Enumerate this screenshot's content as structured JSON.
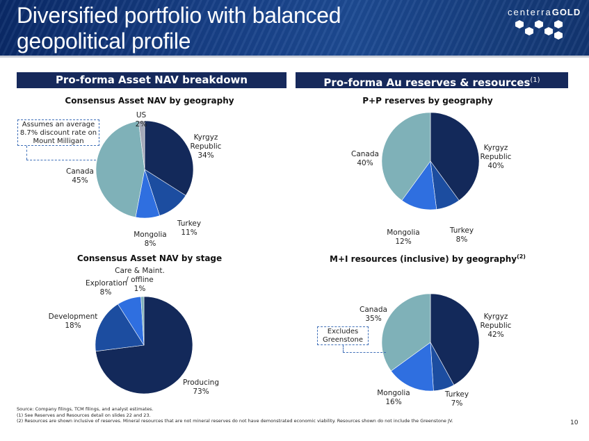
{
  "header": {
    "title": "Diversified portfolio with balanced geopolitical profile",
    "logo_text_light": "centerra",
    "logo_text_bold": "GOLD"
  },
  "sections": {
    "left_heading": "Pro-forma Asset NAV breakdown",
    "right_heading": "Pro-forma Au reserves & resources",
    "right_heading_note": "(1)"
  },
  "callouts": {
    "discount_rate": "Assumes an average 8.7% discount rate on Mount Milligan",
    "greenstone": "Excludes Greenstone"
  },
  "colors": {
    "header_bg": "#173f86",
    "section_bg": "#16295b",
    "navy": "#13295a",
    "mid_blue": "#1c4da0",
    "bright_blue": "#2f6fe0",
    "teal": "#7fb1b8",
    "grey": "#a4a9b8",
    "callout_border": "#3f6fb8"
  },
  "chart_data": [
    {
      "type": "pie",
      "title": "Consensus Asset NAV by geography",
      "slices": [
        {
          "label": "Kyrgyz Republic",
          "display": "Kyrgyz\nRepublic\n34%",
          "value": 34,
          "color": "#13295a"
        },
        {
          "label": "Turkey",
          "display": "Turkey\n11%",
          "value": 11,
          "color": "#1c4da0"
        },
        {
          "label": "Mongolia",
          "display": "Mongolia\n8%",
          "value": 8,
          "color": "#2f6fe0"
        },
        {
          "label": "Canada",
          "display": "Canada\n45%",
          "value": 45,
          "color": "#7fb1b8"
        },
        {
          "label": "US",
          "display": "US\n2%",
          "value": 2,
          "color": "#a4a9b8"
        }
      ]
    },
    {
      "type": "pie",
      "title": "P+P reserves by geography",
      "slices": [
        {
          "label": "Kyrgyz Republic",
          "display": "Kyrgyz\nRepublic\n40%",
          "value": 40,
          "color": "#13295a"
        },
        {
          "label": "Turkey",
          "display": "Turkey\n8%",
          "value": 8,
          "color": "#1c4da0"
        },
        {
          "label": "Mongolia",
          "display": "Mongolia\n12%",
          "value": 12,
          "color": "#2f6fe0"
        },
        {
          "label": "Canada",
          "display": "Canada\n40%",
          "value": 40,
          "color": "#7fb1b8"
        }
      ]
    },
    {
      "type": "pie",
      "title": "Consensus Asset NAV by stage",
      "slices": [
        {
          "label": "Producing",
          "display": "Producing\n73%",
          "value": 73,
          "color": "#13295a"
        },
        {
          "label": "Development",
          "display": "Development\n18%",
          "value": 18,
          "color": "#1c4da0"
        },
        {
          "label": "Exploration",
          "display": "Exploration\n8%",
          "value": 8,
          "color": "#2f6fe0"
        },
        {
          "label": "Care & Maint. / offline",
          "display": "Care & Maint.\n/ offline\n1%",
          "value": 1,
          "color": "#7fb1b8"
        }
      ]
    },
    {
      "type": "pie",
      "title": "M+I resources (inclusive) by geography",
      "title_note": "(2)",
      "slices": [
        {
          "label": "Kyrgyz Republic",
          "display": "Kyrgyz\nRepublic\n42%",
          "value": 42,
          "color": "#13295a"
        },
        {
          "label": "Turkey",
          "display": "Turkey\n7%",
          "value": 7,
          "color": "#1c4da0"
        },
        {
          "label": "Mongolia",
          "display": "Mongolia\n16%",
          "value": 16,
          "color": "#2f6fe0"
        },
        {
          "label": "Canada",
          "display": "Canada\n35%",
          "value": 35,
          "color": "#7fb1b8"
        }
      ]
    }
  ],
  "footnotes": [
    "Source: Company filings, TCM filings, and analyst estimates.",
    "(1) See Reserves and Resources detail on slides 22 and 23.",
    "(2) Resources are shown inclusive of reserves. Mineral resources that are not mineral reserves do not have demonstrated economic viability. Resources shown do not include the Greenstone JV."
  ],
  "page_number": "10"
}
